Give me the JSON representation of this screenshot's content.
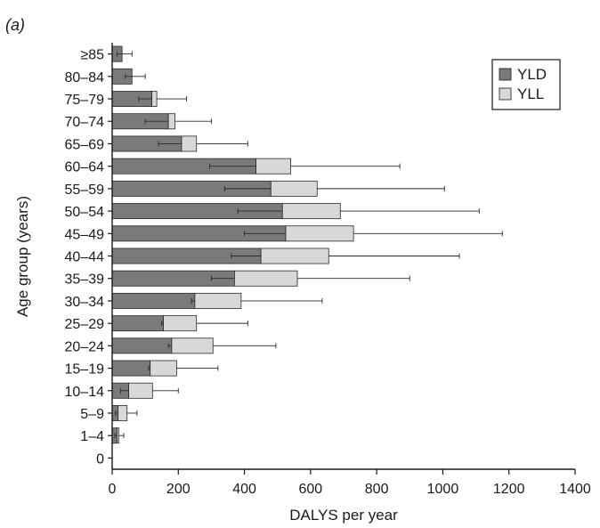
{
  "chart_data": {
    "type": "bar",
    "stacked": true,
    "orientation": "horizontal",
    "panel_label": "(a)",
    "panel_letter": "a",
    "xlabel": "DALYS per year",
    "ylabel": "Age group (years)",
    "xlim": [
      0,
      1400
    ],
    "xticks": [
      0,
      200,
      400,
      600,
      800,
      1000,
      1200,
      1400
    ],
    "grid": false,
    "legend_position": "top-right",
    "categories": [
      "0",
      "1–4",
      "5–9",
      "10–14",
      "15–19",
      "20–24",
      "25–29",
      "30–34",
      "35–39",
      "40–44",
      "45–49",
      "50–54",
      "55–59",
      "60–64",
      "65–69",
      "70–74",
      "75–79",
      "80–84",
      "≥85"
    ],
    "series": [
      {
        "name": "YLD",
        "color": "#7a7a7a",
        "values": [
          0,
          15,
          18,
          50,
          115,
          180,
          155,
          250,
          370,
          450,
          525,
          515,
          480,
          435,
          210,
          170,
          120,
          60,
          30
        ],
        "error_low": [
          0,
          8,
          10,
          25,
          110,
          170,
          150,
          240,
          300,
          360,
          400,
          380,
          340,
          295,
          140,
          100,
          80,
          40,
          15
        ]
      },
      {
        "name": "YLL",
        "color": "#d8d8d8",
        "values": [
          0,
          5,
          27,
          72,
          80,
          125,
          100,
          140,
          190,
          205,
          205,
          175,
          140,
          105,
          45,
          20,
          15,
          0,
          0
        ],
        "error_high": [
          0,
          35,
          75,
          200,
          320,
          495,
          410,
          635,
          900,
          1050,
          1180,
          1110,
          1005,
          870,
          410,
          300,
          225,
          100,
          60
        ]
      }
    ]
  }
}
